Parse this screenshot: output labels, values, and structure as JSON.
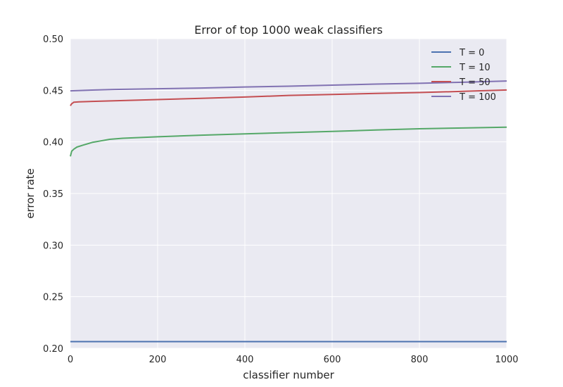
{
  "chart_data": {
    "type": "line",
    "title": "Error of top 1000 weak classifiers",
    "xlabel": "classifier number",
    "ylabel": "error rate",
    "xlim": [
      0,
      1000
    ],
    "ylim": [
      0.2,
      0.5
    ],
    "xticks": [
      0,
      200,
      400,
      600,
      800,
      1000
    ],
    "xtick_labels": [
      "0",
      "200",
      "400",
      "600",
      "800",
      "1000"
    ],
    "yticks": [
      0.2,
      0.25,
      0.3,
      0.35,
      0.4,
      0.45,
      0.5
    ],
    "ytick_labels": [
      "0.20",
      "0.25",
      "0.30",
      "0.35",
      "0.40",
      "0.45",
      "0.50"
    ],
    "grid": true,
    "legend_position": "top-right",
    "background_color": "#EAEAF2",
    "series": [
      {
        "name": "T = 0",
        "color": "#4C72B0",
        "x": [
          0,
          1000
        ],
        "y": [
          0.2065,
          0.2065
        ]
      },
      {
        "name": "T = 10",
        "color": "#55A868",
        "x": [
          0,
          3,
          8,
          15,
          30,
          50,
          70,
          90,
          120,
          200,
          300,
          400,
          500,
          600,
          700,
          800,
          900,
          1000
        ],
        "y": [
          0.386,
          0.391,
          0.393,
          0.395,
          0.397,
          0.3995,
          0.401,
          0.4025,
          0.4035,
          0.405,
          0.4065,
          0.4078,
          0.409,
          0.4102,
          0.4115,
          0.4127,
          0.4135,
          0.4143
        ]
      },
      {
        "name": "T = 50",
        "color": "#C44E52",
        "x": [
          0,
          3,
          8,
          20,
          50,
          100,
          200,
          300,
          400,
          500,
          600,
          700,
          800,
          900,
          1000
        ],
        "y": [
          0.435,
          0.437,
          0.4385,
          0.4388,
          0.4392,
          0.4398,
          0.441,
          0.4422,
          0.4435,
          0.445,
          0.446,
          0.447,
          0.4478,
          0.449,
          0.4503
        ]
      },
      {
        "name": "T = 100",
        "color": "#8172B2",
        "x": [
          0,
          50,
          100,
          200,
          300,
          400,
          500,
          600,
          700,
          800,
          900,
          1000
        ],
        "y": [
          0.4495,
          0.4502,
          0.4508,
          0.4515,
          0.4522,
          0.4532,
          0.454,
          0.455,
          0.456,
          0.4568,
          0.4578,
          0.459
        ]
      }
    ]
  }
}
